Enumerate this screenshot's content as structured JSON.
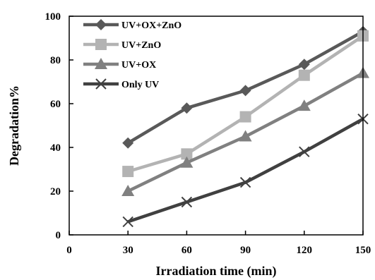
{
  "chart_data": {
    "type": "line",
    "xlabel": "Irradiation time (min)",
    "ylabel": "Degradation%",
    "xlim": [
      0,
      150
    ],
    "ylim": [
      0,
      100
    ],
    "xticks": [
      0,
      30,
      60,
      90,
      120,
      150
    ],
    "yticks": [
      0,
      20,
      40,
      60,
      80,
      100
    ],
    "x": [
      30,
      60,
      90,
      120,
      150
    ],
    "grid": false,
    "legend_position": "top-left",
    "series": [
      {
        "name": "UV+OX+ZnO",
        "values": [
          42,
          58,
          66,
          78,
          93
        ],
        "color": "#595959",
        "marker": "diamond"
      },
      {
        "name": "UV+ZnO",
        "values": [
          29,
          37,
          54,
          73,
          91
        ],
        "color": "#b3b3b3",
        "marker": "square"
      },
      {
        "name": "UV+OX",
        "values": [
          20,
          33,
          45,
          59,
          74
        ],
        "color": "#808080",
        "marker": "triangle"
      },
      {
        "name": "Only UV",
        "values": [
          6,
          15,
          24,
          38,
          53
        ],
        "color": "#404040",
        "marker": "x"
      }
    ]
  }
}
